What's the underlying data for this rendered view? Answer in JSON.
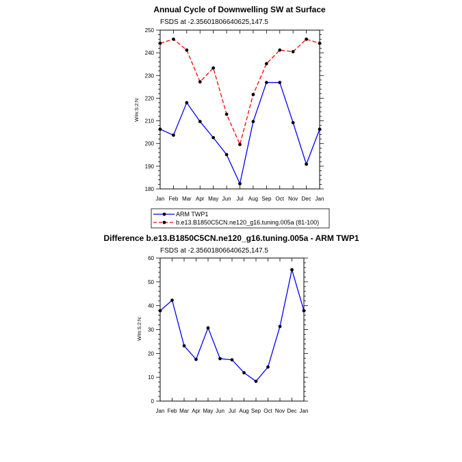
{
  "chart_data": [
    {
      "type": "line",
      "title": "Annual Cycle of Downwelling SW at Surface",
      "subtitle": "FSDS at -2.35601806640625,147.5",
      "ylabel": "W/m:S:2:N:",
      "xlabel": "",
      "categories": [
        "Jan",
        "Feb",
        "Mar",
        "Apr",
        "May",
        "Jun",
        "Jul",
        "Aug",
        "Sep",
        "Oct",
        "Nov",
        "Dec",
        "Jan"
      ],
      "ylim": [
        180,
        250
      ],
      "yticks": [
        180,
        190,
        200,
        210,
        220,
        230,
        240,
        250
      ],
      "series": [
        {
          "name": "ARM TWP1",
          "color": "#0000ff",
          "dash": "solid",
          "values": [
            206.3,
            203.7,
            218.0,
            209.7,
            202.6,
            195.1,
            182.3,
            209.7,
            226.9,
            226.9,
            209.2,
            190.9,
            206.3
          ]
        },
        {
          "name": "b.e13.B1850C5CN.ne120_g16.tuning.005a (81-100)",
          "color": "#ff0000",
          "dash": "dashed",
          "values": [
            244.2,
            246.0,
            241.2,
            227.2,
            233.3,
            212.9,
            199.6,
            221.6,
            235.2,
            241.2,
            240.5,
            246.0,
            244.2
          ]
        }
      ]
    },
    {
      "type": "line",
      "title": "Difference b.e13.B1850C5CN.ne120_g16.tuning.005a - ARM TWP1",
      "subtitle": "FSDS at -2.35601806640625,147.5",
      "ylabel": "W/m:S:2:N:",
      "xlabel": "",
      "categories": [
        "Jan",
        "Feb",
        "Mar",
        "Apr",
        "May",
        "Jun",
        "Jul",
        "Aug",
        "Sep",
        "Oct",
        "Nov",
        "Dec",
        "Jan"
      ],
      "ylim": [
        0,
        60
      ],
      "yticks": [
        0,
        10,
        20,
        30,
        40,
        50,
        60
      ],
      "series": [
        {
          "color": "#0000ff",
          "dash": "solid",
          "values": [
            37.9,
            42.3,
            23.2,
            17.5,
            30.7,
            17.8,
            17.3,
            11.9,
            8.3,
            14.3,
            31.3,
            55.1,
            37.9
          ]
        }
      ]
    }
  ]
}
